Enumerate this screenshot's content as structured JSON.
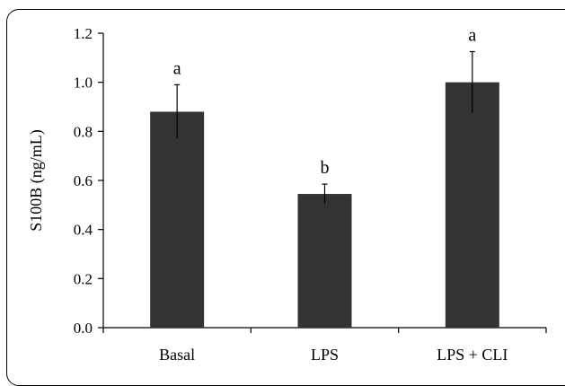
{
  "chart_data": {
    "type": "bar",
    "categories": [
      "Basal",
      "LPS",
      "LPS + CLI"
    ],
    "values": [
      0.88,
      0.545,
      1.0
    ],
    "errors": [
      0.11,
      0.04,
      0.125
    ],
    "significance": [
      "a",
      "b",
      "a"
    ],
    "ylabel": "S100B (ng/mL)",
    "ylim": [
      0,
      1.2
    ],
    "yticks": [
      "0.0",
      "0.2",
      "0.4",
      "0.6",
      "0.8",
      "1.0",
      "1.2"
    ],
    "grid": false,
    "bar_color": "#333333"
  }
}
